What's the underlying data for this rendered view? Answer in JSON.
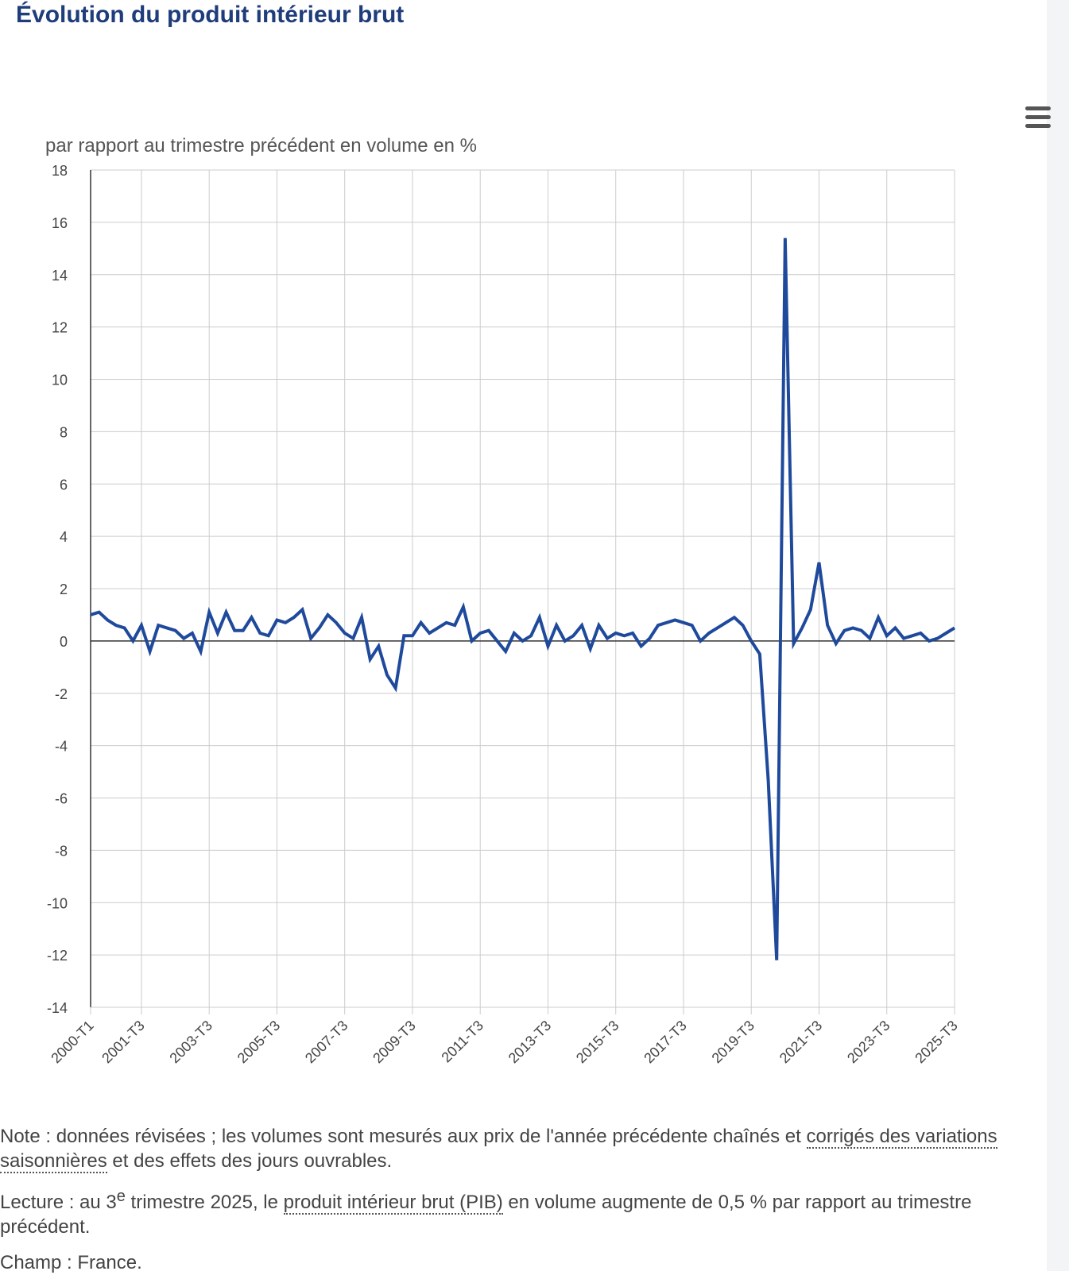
{
  "title": "Évolution du produit intérieur brut",
  "colors": {
    "line": "#1f4a9c",
    "title": "#1f3d7a",
    "grid": "#cccccc",
    "axis": "#333333"
  },
  "icons": {
    "menu": "hamburger-icon"
  },
  "chart_data": {
    "type": "line",
    "ylabel": "par rapport au trimestre précédent en volume en %",
    "xlabel": "",
    "ylim": [
      -14,
      18
    ],
    "yticks": [
      -14,
      -12,
      -10,
      -8,
      -6,
      -4,
      -2,
      0,
      2,
      4,
      6,
      8,
      10,
      12,
      14,
      16,
      18
    ],
    "xtick_labels": [
      "2000-T1",
      "2001-T3",
      "2003-T3",
      "2005-T3",
      "2007-T3",
      "2009-T3",
      "2011-T3",
      "2013-T3",
      "2015-T3",
      "2017-T3",
      "2019-T3",
      "2021-T3",
      "2023-T3",
      "2025-T3"
    ],
    "xtick_index": [
      0,
      6,
      14,
      22,
      30,
      38,
      46,
      54,
      62,
      70,
      78,
      86,
      94,
      102
    ],
    "x_start": "2000-T1",
    "x_end": "2025-T3",
    "grid": true,
    "legend": "none",
    "series": [
      {
        "values": [
          1.0,
          1.1,
          0.8,
          0.6,
          0.5,
          0.0,
          0.6,
          -0.4,
          0.6,
          0.5,
          0.4,
          0.1,
          0.3,
          -0.4,
          1.1,
          0.3,
          1.1,
          0.4,
          0.4,
          0.9,
          0.3,
          0.2,
          0.8,
          0.7,
          0.9,
          1.2,
          0.1,
          0.5,
          1.0,
          0.7,
          0.3,
          0.1,
          0.9,
          -0.7,
          -0.2,
          -1.3,
          -1.8,
          0.2,
          0.2,
          0.7,
          0.3,
          0.5,
          0.7,
          0.6,
          1.3,
          0.0,
          0.3,
          0.4,
          0.0,
          -0.4,
          0.3,
          0.0,
          0.2,
          0.9,
          -0.2,
          0.6,
          0.0,
          0.2,
          0.6,
          -0.3,
          0.6,
          0.1,
          0.3,
          0.2,
          0.3,
          -0.2,
          0.1,
          0.6,
          0.7,
          0.8,
          0.7,
          0.6,
          0.0,
          0.3,
          0.5,
          0.7,
          0.9,
          0.6,
          0.0,
          -0.5,
          -5.3,
          -12.2,
          15.4,
          -0.1,
          0.5,
          1.2,
          3.0,
          0.6,
          -0.1,
          0.4,
          0.5,
          0.4,
          0.1,
          0.9,
          0.2,
          0.5,
          0.1,
          0.2,
          0.3,
          0.0,
          0.1,
          0.3,
          0.5
        ]
      }
    ]
  },
  "notes": {
    "note_prefix": "Note : données révisées ; les volumes sont mesurés aux prix de l'année précédente chaînés et ",
    "note_link": "corrigés des variations saisonnières",
    "note_suffix": " et des effets des jours ouvrables.",
    "lecture_prefix": "Lecture : au 3",
    "lecture_sup": "e",
    "lecture_mid": " trimestre 2025, le ",
    "lecture_link": "produit intérieur brut (PIB)",
    "lecture_suffix": " en volume augmente de 0,5 % par rapport au trimestre précédent.",
    "champ": "Champ : France."
  }
}
